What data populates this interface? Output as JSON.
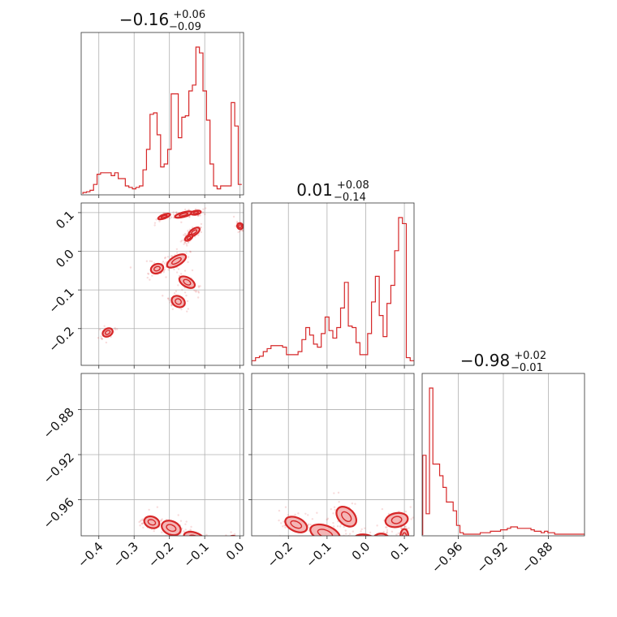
{
  "colors": {
    "accent": "#d62728",
    "grid": "#b0b0b0",
    "fill": "#f4b6b6"
  },
  "chart_data": [
    {
      "type": "corner",
      "params": [
        {
          "title": {
            "center": "−0.16",
            "upper": "+0.06",
            "lower": "−0.09"
          },
          "range": [
            -0.45,
            0.01
          ],
          "ticks": [
            -0.4,
            -0.3,
            -0.2,
            -0.1,
            0.0
          ],
          "tick_labels": [
            "−0.4",
            "−0.3",
            "−0.2",
            "−0.1",
            "0.0"
          ]
        },
        {
          "title": {
            "center": "0.01",
            "upper": "+0.08",
            "lower": "−0.14"
          },
          "range": [
            -0.295,
            0.125
          ],
          "ticks": [
            -0.2,
            -0.1,
            0.0,
            0.1
          ],
          "tick_labels": [
            "−0.2",
            "−0.1",
            "0.0",
            "0.1"
          ]
        },
        {
          "title": {
            "center": "−0.98",
            "upper": "+0.02",
            "lower": "−0.01"
          },
          "range": [
            -0.992,
            -0.848
          ],
          "ticks": [
            -0.96,
            -0.92,
            -0.88
          ],
          "tick_labels": [
            "−0.96",
            "−0.92",
            "−0.88"
          ]
        }
      ],
      "histograms": [
        {
          "x": [
            -0.44,
            -0.43,
            -0.42,
            -0.41,
            -0.4,
            -0.39,
            -0.38,
            -0.37,
            -0.36,
            -0.35,
            -0.34,
            -0.33,
            -0.32,
            -0.31,
            -0.3,
            -0.29,
            -0.28,
            -0.27,
            -0.26,
            -0.25,
            -0.24,
            -0.23,
            -0.22,
            -0.21,
            -0.2,
            -0.19,
            -0.18,
            -0.17,
            -0.16,
            -0.15,
            -0.14,
            -0.13,
            -0.12,
            -0.11,
            -0.1,
            -0.09,
            -0.08,
            -0.07,
            -0.06,
            -0.05,
            -0.04,
            -0.03,
            -0.02,
            -0.01,
            0.0
          ],
          "values": [
            0.5,
            1,
            2,
            6,
            13,
            14,
            14,
            14,
            12,
            14,
            10,
            10,
            5,
            4,
            3,
            4,
            5,
            16,
            30,
            54,
            55,
            40,
            18,
            20,
            30,
            68,
            68,
            38,
            52,
            53,
            70,
            74,
            100,
            96,
            70,
            50,
            20,
            5,
            3,
            5,
            5,
            5,
            62,
            46,
            6
          ]
        },
        {
          "x": [
            -0.29,
            -0.28,
            -0.27,
            -0.26,
            -0.25,
            -0.24,
            -0.23,
            -0.22,
            -0.21,
            -0.2,
            -0.19,
            -0.18,
            -0.17,
            -0.16,
            -0.15,
            -0.14,
            -0.13,
            -0.12,
            -0.11,
            -0.1,
            -0.09,
            -0.08,
            -0.07,
            -0.06,
            -0.05,
            -0.04,
            -0.03,
            -0.02,
            -0.01,
            0.0,
            0.01,
            0.02,
            0.03,
            0.04,
            0.05,
            0.06,
            0.07,
            0.08,
            0.09,
            0.1,
            0.11,
            0.12
          ],
          "values": [
            2,
            4,
            5,
            8,
            10,
            12,
            12,
            12,
            11,
            6,
            6,
            6,
            8,
            16,
            24,
            19,
            13,
            11,
            20,
            31,
            22,
            17,
            24,
            37,
            54,
            25,
            24,
            14,
            6,
            6,
            20,
            41,
            58,
            32,
            18,
            40,
            52,
            75,
            97,
            93,
            4,
            2
          ]
        },
        {
          "x": [
            -0.99,
            -0.987,
            -0.984,
            -0.981,
            -0.978,
            -0.975,
            -0.972,
            -0.969,
            -0.966,
            -0.963,
            -0.96,
            -0.957,
            -0.954,
            -0.951,
            -0.948,
            -0.945,
            -0.942,
            -0.939,
            -0.936,
            -0.933,
            -0.93,
            -0.927,
            -0.924,
            -0.921,
            -0.918,
            -0.915,
            -0.912,
            -0.909,
            -0.906,
            -0.903,
            -0.9,
            -0.897,
            -0.894,
            -0.891,
            -0.888,
            -0.885,
            -0.882,
            -0.879,
            -0.876,
            -0.873,
            -0.87,
            -0.867,
            -0.864,
            -0.861,
            -0.858,
            -0.855,
            -0.852,
            -0.849
          ],
          "values": [
            54,
            14,
            100,
            48,
            48,
            40,
            32,
            22,
            22,
            16,
            6,
            1,
            0,
            0,
            0,
            0,
            0,
            1,
            1,
            1,
            2,
            2,
            2,
            3,
            3,
            4,
            5,
            5,
            4,
            4,
            4,
            4,
            3,
            2,
            2,
            1,
            2,
            1,
            1,
            0,
            0,
            0,
            0,
            0,
            0,
            0,
            0,
            0
          ]
        }
      ],
      "modes": [
        {
          "pair": [
            0,
            1
          ],
          "points": [
            [
              -0.215,
              0.09,
              0.018,
              0.005,
              -20
            ],
            [
              -0.16,
              0.095,
              0.025,
              0.006,
              -15
            ],
            [
              -0.125,
              0.1,
              0.014,
              0.005,
              -10
            ],
            [
              -0.13,
              0.05,
              0.018,
              0.008,
              -35
            ],
            [
              -0.145,
              0.035,
              0.012,
              0.006,
              -35
            ],
            [
              -0.18,
              -0.025,
              0.03,
              0.012,
              -30
            ],
            [
              -0.235,
              -0.045,
              0.018,
              0.012,
              -20
            ],
            [
              -0.175,
              -0.13,
              0.015,
              0.018,
              -60
            ],
            [
              -0.15,
              -0.08,
              0.013,
              0.022,
              -60
            ],
            [
              0.0,
              0.065,
              0.008,
              0.008,
              -30
            ],
            [
              -0.375,
              -0.21,
              0.015,
              0.01,
              -30
            ]
          ]
        },
        {
          "pair": [
            0,
            2
          ],
          "points": [
            [
              -0.25,
              -0.98,
              0.022,
              0.005,
              20
            ],
            [
              -0.195,
              -0.985,
              0.028,
              0.006,
              22
            ],
            [
              -0.13,
              -0.994,
              0.03,
              0.005,
              18
            ],
            [
              -0.02,
              -0.996,
              0.015,
              0.004,
              0
            ]
          ]
        },
        {
          "pair": [
            1,
            2
          ],
          "points": [
            [
              -0.18,
              -0.982,
              0.03,
              0.006,
              25
            ],
            [
              -0.105,
              -0.99,
              0.04,
              0.007,
              20
            ],
            [
              -0.05,
              -0.975,
              0.03,
              0.007,
              45
            ],
            [
              0.0,
              -0.996,
              0.03,
              0.005,
              10
            ],
            [
              0.08,
              -0.978,
              0.018,
              0.01,
              80
            ],
            [
              0.04,
              -0.995,
              0.02,
              0.005,
              0
            ],
            [
              0.1,
              -0.992,
              0.01,
              0.006,
              0
            ]
          ]
        }
      ],
      "grid": true
    }
  ]
}
